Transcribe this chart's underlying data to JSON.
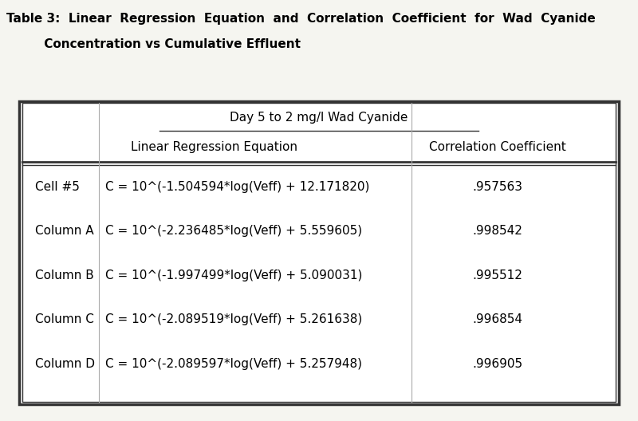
{
  "title_line1": "Table 3:  Linear  Regression  Equation  and  Correlation  Coefficient  for  Wad  Cyanide",
  "title_line2": "         Concentration vs Cumulative Effluent",
  "section_header": "Day 5 to 2 mg/l Wad Cyanide",
  "col_header1": "Linear Regression Equation",
  "col_header2": "Correlation Coefficient",
  "rows": [
    {
      "label": "Cell #5",
      "equation": "C = 10^(-1.504594*log(Veff) + 12.171820)",
      "coeff": ".957563"
    },
    {
      "label": "Column A",
      "equation": "C = 10^(-2.236485*log(Veff) + 5.559605)",
      "coeff": ".998542"
    },
    {
      "label": "Column B",
      "equation": "C = 10^(-1.997499*log(Veff) + 5.090031)",
      "coeff": ".995512"
    },
    {
      "label": "Column C",
      "equation": "C = 10^(-2.089519*log(Veff) + 5.261638)",
      "coeff": ".996854"
    },
    {
      "label": "Column D",
      "equation": "C = 10^(-2.089597*log(Veff) + 5.257948)",
      "coeff": ".996905"
    }
  ],
  "bg_color": "#f5f5f0",
  "table_bg": "#ffffff",
  "text_color": "#000000",
  "font_family": "Courier New",
  "title_fontsize": 11,
  "header_fontsize": 11,
  "row_fontsize": 11
}
